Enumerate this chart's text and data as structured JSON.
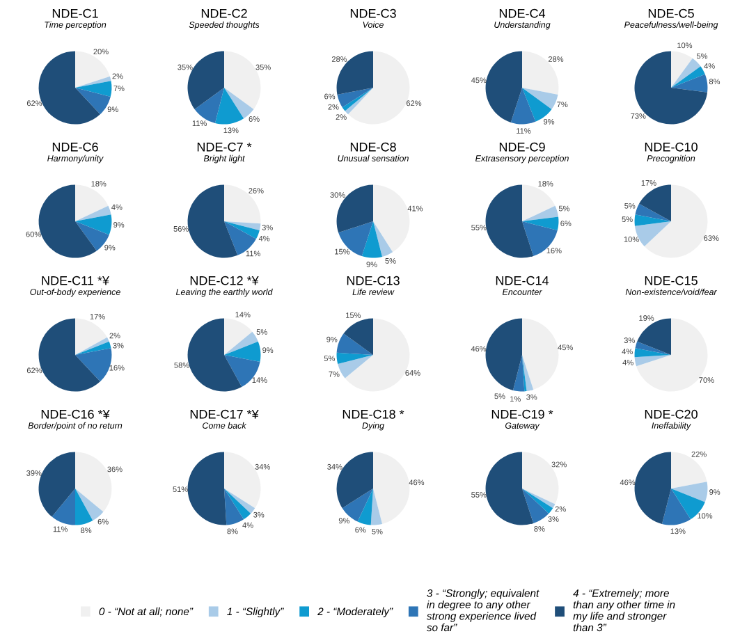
{
  "chart_data": [
    {
      "type": "pie",
      "title": "NDE-C1",
      "subtitle": "Time perception",
      "legend": "bottom",
      "categories": [
        "0 - “Not at all; none”",
        "1 - “Slightly”",
        "2 - “Moderately”",
        "3 - “Strongly; equivalent\nin degree to any other\nstrong experience lived\nso far”",
        "4 - “Extremely; more\nthan any other time in\nmy life and stronger\nthan 3”"
      ],
      "values": [
        20,
        2,
        7,
        9,
        62
      ],
      "value_labels": [
        "20%",
        "2%",
        "7%",
        "9%",
        "62%"
      ],
      "colors": [
        "#f0f0f0",
        "#a9cbe8",
        "#0f9bd0",
        "#2e75b6",
        "#1f4e79"
      ]
    },
    {
      "type": "pie",
      "title": "NDE-C2",
      "subtitle": "Speeded thoughts",
      "values": [
        35,
        6,
        13,
        11,
        35
      ],
      "value_labels": [
        "35%",
        "6%",
        "13%",
        "11%",
        "35%"
      ],
      "colors": [
        "#f0f0f0",
        "#a9cbe8",
        "#0f9bd0",
        "#2e75b6",
        "#1f4e79"
      ]
    },
    {
      "type": "pie",
      "title": "NDE-C3",
      "subtitle": "Voice",
      "values": [
        62,
        2,
        2,
        6,
        28
      ],
      "value_labels": [
        "62%",
        "2%",
        "2%",
        "6%",
        "28%"
      ],
      "colors": [
        "#f0f0f0",
        "#a9cbe8",
        "#0f9bd0",
        "#2e75b6",
        "#1f4e79"
      ]
    },
    {
      "type": "pie",
      "title": "NDE-C4",
      "subtitle": "Understanding",
      "values": [
        28,
        7,
        9,
        11,
        45
      ],
      "value_labels": [
        "28%",
        "7%",
        "9%",
        "11%",
        "45%"
      ],
      "colors": [
        "#f0f0f0",
        "#a9cbe8",
        "#0f9bd0",
        "#2e75b6",
        "#1f4e79"
      ]
    },
    {
      "type": "pie",
      "title": "NDE-C5",
      "subtitle": "Peacefulness/well-being",
      "values": [
        10,
        5,
        4,
        8,
        73
      ],
      "value_labels": [
        "10%",
        "5%",
        "4%",
        "8%",
        "73%"
      ],
      "colors": [
        "#f0f0f0",
        "#a9cbe8",
        "#0f9bd0",
        "#2e75b6",
        "#1f4e79"
      ]
    },
    {
      "type": "pie",
      "title": "NDE-C6",
      "subtitle": "Harmony/unity",
      "values": [
        18,
        4,
        9,
        9,
        60
      ],
      "value_labels": [
        "18%",
        "4%",
        "9%",
        "9%",
        "60%"
      ],
      "colors": [
        "#f0f0f0",
        "#a9cbe8",
        "#0f9bd0",
        "#2e75b6",
        "#1f4e79"
      ]
    },
    {
      "type": "pie",
      "title": "NDE-C7 *",
      "subtitle": "Bright light",
      "values": [
        26,
        3,
        4,
        11,
        56
      ],
      "value_labels": [
        "26%",
        "3%",
        "4%",
        "11%",
        "56%"
      ],
      "colors": [
        "#f0f0f0",
        "#a9cbe8",
        "#0f9bd0",
        "#2e75b6",
        "#1f4e79"
      ]
    },
    {
      "type": "pie",
      "title": "NDE-C8",
      "subtitle": "Unusual sensation",
      "values": [
        41,
        5,
        9,
        15,
        30
      ],
      "value_labels": [
        "41%",
        "5%",
        "9%",
        "15%",
        "30%"
      ],
      "colors": [
        "#f0f0f0",
        "#a9cbe8",
        "#0f9bd0",
        "#2e75b6",
        "#1f4e79"
      ]
    },
    {
      "type": "pie",
      "title": "NDE-C9",
      "subtitle": "Extrasensory perception",
      "values": [
        18,
        5,
        6,
        16,
        55
      ],
      "value_labels": [
        "18%",
        "5%",
        "6%",
        "16%",
        "55%"
      ],
      "colors": [
        "#f0f0f0",
        "#a9cbe8",
        "#0f9bd0",
        "#2e75b6",
        "#1f4e79"
      ]
    },
    {
      "type": "pie",
      "title": "NDE-C10",
      "subtitle": "Precognition",
      "values": [
        63,
        10,
        5,
        5,
        17
      ],
      "value_labels": [
        "63%",
        "10%",
        "5%",
        "5%",
        "17%"
      ],
      "colors": [
        "#f0f0f0",
        "#a9cbe8",
        "#0f9bd0",
        "#2e75b6",
        "#1f4e79"
      ]
    },
    {
      "type": "pie",
      "title": "NDE-C11 *¥",
      "subtitle": "Out-of-body experience",
      "values": [
        17,
        2,
        3,
        16,
        62
      ],
      "value_labels": [
        "17%",
        "2%",
        "3%",
        "16%",
        "62%"
      ],
      "colors": [
        "#f0f0f0",
        "#a9cbe8",
        "#0f9bd0",
        "#2e75b6",
        "#1f4e79"
      ]
    },
    {
      "type": "pie",
      "title": "NDE-C12 *¥",
      "subtitle": "Leaving the earthly world",
      "values": [
        14,
        5,
        9,
        14,
        58
      ],
      "value_labels": [
        "14%",
        "5%",
        "9%",
        "14%",
        "58%"
      ],
      "colors": [
        "#f0f0f0",
        "#a9cbe8",
        "#0f9bd0",
        "#2e75b6",
        "#1f4e79"
      ]
    },
    {
      "type": "pie",
      "title": "NDE-C13",
      "subtitle": "Life review",
      "values": [
        64,
        7,
        5,
        9,
        15
      ],
      "value_labels": [
        "64%",
        "7%",
        "5%",
        "9%",
        "15%"
      ],
      "colors": [
        "#f0f0f0",
        "#a9cbe8",
        "#0f9bd0",
        "#2e75b6",
        "#1f4e79"
      ]
    },
    {
      "type": "pie",
      "title": "NDE-C14",
      "subtitle": "Encounter",
      "values": [
        45,
        3,
        1,
        5,
        46
      ],
      "value_labels": [
        "45%",
        "3%",
        "1%",
        "5%",
        "46%"
      ],
      "colors": [
        "#f0f0f0",
        "#a9cbe8",
        "#0f9bd0",
        "#2e75b6",
        "#1f4e79"
      ]
    },
    {
      "type": "pie",
      "title": "NDE-C15",
      "subtitle": "Non-existence/void/fear",
      "values": [
        70,
        4,
        4,
        3,
        19
      ],
      "value_labels": [
        "70%",
        "4%",
        "4%",
        "3%",
        "19%"
      ],
      "colors": [
        "#f0f0f0",
        "#a9cbe8",
        "#0f9bd0",
        "#2e75b6",
        "#1f4e79"
      ]
    },
    {
      "type": "pie",
      "title": "NDE-C16 *¥",
      "subtitle": "Border/point of no return",
      "values": [
        36,
        6,
        8,
        11,
        39
      ],
      "value_labels": [
        "36%",
        "6%",
        "8%",
        "11%",
        "39%"
      ],
      "colors": [
        "#f0f0f0",
        "#a9cbe8",
        "#0f9bd0",
        "#2e75b6",
        "#1f4e79"
      ]
    },
    {
      "type": "pie",
      "title": "NDE-C17 *¥",
      "subtitle": "Come back",
      "values": [
        34,
        3,
        4,
        8,
        51
      ],
      "value_labels": [
        "34%",
        "3%",
        "4%",
        "8%",
        "51%"
      ],
      "colors": [
        "#f0f0f0",
        "#a9cbe8",
        "#0f9bd0",
        "#2e75b6",
        "#1f4e79"
      ]
    },
    {
      "type": "pie",
      "title": "NDE-C18 *",
      "subtitle": "Dying",
      "values": [
        46,
        5,
        6,
        9,
        34
      ],
      "value_labels": [
        "46%",
        "5%",
        "6%",
        "9%",
        "34%"
      ],
      "colors": [
        "#f0f0f0",
        "#a9cbe8",
        "#0f9bd0",
        "#2e75b6",
        "#1f4e79"
      ]
    },
    {
      "type": "pie",
      "title": "NDE-C19 *",
      "subtitle": "Gateway",
      "values": [
        32,
        2,
        3,
        8,
        55
      ],
      "value_labels": [
        "32%",
        "2%",
        "3%",
        "8%",
        "55%"
      ],
      "colors": [
        "#f0f0f0",
        "#a9cbe8",
        "#0f9bd0",
        "#2e75b6",
        "#1f4e79"
      ]
    },
    {
      "type": "pie",
      "title": "NDE-C20",
      "subtitle": "Ineffability",
      "values": [
        22,
        9,
        10,
        13,
        46
      ],
      "value_labels": [
        "22%",
        "9%",
        "10%",
        "13%",
        "46%"
      ],
      "colors": [
        "#f0f0f0",
        "#a9cbe8",
        "#0f9bd0",
        "#2e75b6",
        "#1f4e79"
      ]
    }
  ]
}
